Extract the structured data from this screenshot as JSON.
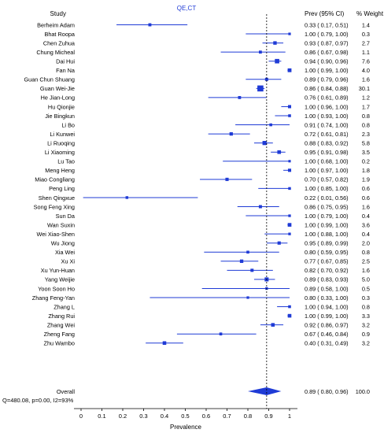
{
  "chart_data": {
    "type": "forest",
    "title": "QE,CT",
    "title_color": "#1f3bd6",
    "marker_color": "#1f3bd6",
    "line_color": "#1f3bd6",
    "headers": {
      "study": "Study",
      "ci": "Prev (95% CI)",
      "weight": "% Weight"
    },
    "xlabel": "Prevalence",
    "xlim": [
      0,
      1
    ],
    "xticks": [
      "0",
      "0.1",
      "0.2",
      "0.3",
      "0.4",
      "0.5",
      "0.6",
      "0.7",
      "0.8",
      "0.9",
      "1"
    ],
    "reference_line": 0.89,
    "studies": [
      {
        "name": "Berheim Adam",
        "est": 0.33,
        "lo": 0.17,
        "hi": 0.51,
        "ci_text": "0.33 ( 0.17, 0.51)",
        "weight": "1.4"
      },
      {
        "name": "Bhat Roopa",
        "est": 1.0,
        "lo": 0.79,
        "hi": 1.0,
        "ci_text": "1.00 ( 0.79, 1.00)",
        "weight": "0.3"
      },
      {
        "name": "Chen Zuhua",
        "est": 0.93,
        "lo": 0.87,
        "hi": 0.97,
        "ci_text": "0.93 ( 0.87, 0.97)",
        "weight": "2.7"
      },
      {
        "name": "Chung Micheal",
        "est": 0.86,
        "lo": 0.67,
        "hi": 0.98,
        "ci_text": "0.86 ( 0.67, 0.98)",
        "weight": "1.1"
      },
      {
        "name": "Dai Hui",
        "est": 0.94,
        "lo": 0.9,
        "hi": 0.96,
        "ci_text": "0.94 ( 0.90, 0.96)",
        "weight": "7.6"
      },
      {
        "name": "Fan Na",
        "est": 1.0,
        "lo": 0.99,
        "hi": 1.0,
        "ci_text": "1.00 ( 0.99, 1.00)",
        "weight": "4.0"
      },
      {
        "name": "Guan Chun Shuang",
        "est": 0.89,
        "lo": 0.79,
        "hi": 0.96,
        "ci_text": "0.89 ( 0.79, 0.96)",
        "weight": "1.6"
      },
      {
        "name": "Guan Wei-Jie",
        "est": 0.86,
        "lo": 0.84,
        "hi": 0.88,
        "ci_text": "0.86 ( 0.84, 0.88)",
        "weight": "30.1"
      },
      {
        "name": "He Jian-Long",
        "est": 0.76,
        "lo": 0.61,
        "hi": 0.89,
        "ci_text": "0.76 ( 0.61, 0.89)",
        "weight": "1.2"
      },
      {
        "name": "Hu Qionjie",
        "est": 1.0,
        "lo": 0.96,
        "hi": 1.0,
        "ci_text": "1.00 ( 0.96, 1.00)",
        "weight": "1.7"
      },
      {
        "name": "Jie Bingkun",
        "est": 1.0,
        "lo": 0.93,
        "hi": 1.0,
        "ci_text": "1.00 ( 0.93, 1.00)",
        "weight": "0.8"
      },
      {
        "name": "Li Bo",
        "est": 0.91,
        "lo": 0.74,
        "hi": 1.0,
        "ci_text": "0.91 ( 0.74, 1.00)",
        "weight": "0.8"
      },
      {
        "name": "Li Kunwei",
        "est": 0.72,
        "lo": 0.61,
        "hi": 0.81,
        "ci_text": "0.72 ( 0.61, 0.81)",
        "weight": "2.3"
      },
      {
        "name": "Li Ruoqing",
        "est": 0.88,
        "lo": 0.83,
        "hi": 0.92,
        "ci_text": "0.88 ( 0.83, 0.92)",
        "weight": "5.8"
      },
      {
        "name": "Li Xiaoming",
        "est": 0.95,
        "lo": 0.91,
        "hi": 0.98,
        "ci_text": "0.95 ( 0.91, 0.98)",
        "weight": "3.5"
      },
      {
        "name": "Lu Tao",
        "est": 1.0,
        "lo": 0.68,
        "hi": 1.0,
        "ci_text": "1.00 ( 0.68, 1.00)",
        "weight": "0.2"
      },
      {
        "name": "Meng Heng",
        "est": 1.0,
        "lo": 0.97,
        "hi": 1.0,
        "ci_text": "1.00 ( 0.97, 1.00)",
        "weight": "1.8"
      },
      {
        "name": "Miao Congliang",
        "est": 0.7,
        "lo": 0.57,
        "hi": 0.82,
        "ci_text": "0.70 ( 0.57, 0.82)",
        "weight": "1.9"
      },
      {
        "name": "Peng Ling",
        "est": 1.0,
        "lo": 0.85,
        "hi": 1.0,
        "ci_text": "1.00 ( 0.85, 1.00)",
        "weight": "0.6"
      },
      {
        "name": "Shen Qingxue",
        "est": 0.22,
        "lo": 0.01,
        "hi": 0.56,
        "ci_text": "0.22 ( 0.01, 0.56)",
        "weight": "0.6"
      },
      {
        "name": "Song Feng Xing",
        "est": 0.86,
        "lo": 0.75,
        "hi": 0.95,
        "ci_text": "0.86 ( 0.75, 0.95)",
        "weight": "1.6"
      },
      {
        "name": "Sun Da",
        "est": 1.0,
        "lo": 0.79,
        "hi": 1.0,
        "ci_text": "1.00 ( 0.79, 1.00)",
        "weight": "0.4"
      },
      {
        "name": "Wan Suxin",
        "est": 1.0,
        "lo": 0.99,
        "hi": 1.0,
        "ci_text": "1.00 ( 0.99, 1.00)",
        "weight": "3.6"
      },
      {
        "name": "Wei Xiao-Shen",
        "est": 1.0,
        "lo": 0.88,
        "hi": 1.0,
        "ci_text": "1.00 ( 0.88, 1.00)",
        "weight": "0.4"
      },
      {
        "name": "Wu Jiong",
        "est": 0.95,
        "lo": 0.89,
        "hi": 0.99,
        "ci_text": "0.95 ( 0.89, 0.99)",
        "weight": "2.0"
      },
      {
        "name": "Xia Wei",
        "est": 0.8,
        "lo": 0.59,
        "hi": 0.95,
        "ci_text": "0.80 ( 0.59, 0.95)",
        "weight": "0.8"
      },
      {
        "name": "Xu Xi",
        "est": 0.77,
        "lo": 0.67,
        "hi": 0.85,
        "ci_text": "0.77 ( 0.67, 0.85)",
        "weight": "2.5"
      },
      {
        "name": "Xu Yun-Huan",
        "est": 0.82,
        "lo": 0.7,
        "hi": 0.92,
        "ci_text": "0.82 ( 0.70, 0.92)",
        "weight": "1.6"
      },
      {
        "name": "Yang Weijie",
        "est": 0.89,
        "lo": 0.83,
        "hi": 0.93,
        "ci_text": "0.89 ( 0.83, 0.93)",
        "weight": "5.0"
      },
      {
        "name": "Yoon Soon Ho",
        "est": 0.89,
        "lo": 0.58,
        "hi": 1.0,
        "ci_text": "0.89 ( 0.58, 1.00)",
        "weight": "0.5"
      },
      {
        "name": "Zhang Feng-Yan",
        "est": 0.8,
        "lo": 0.33,
        "hi": 1.0,
        "ci_text": "0.80 ( 0.33, 1.00)",
        "weight": "0.3"
      },
      {
        "name": "Zhang L",
        "est": 1.0,
        "lo": 0.94,
        "hi": 1.0,
        "ci_text": "1.00 ( 0.94, 1.00)",
        "weight": "0.8"
      },
      {
        "name": "Zhang Rui",
        "est": 1.0,
        "lo": 0.99,
        "hi": 1.0,
        "ci_text": "1.00 ( 0.99, 1.00)",
        "weight": "3.3"
      },
      {
        "name": "Zhang Wei",
        "est": 0.92,
        "lo": 0.86,
        "hi": 0.97,
        "ci_text": "0.92 ( 0.86, 0.97)",
        "weight": "3.2"
      },
      {
        "name": "Zheng Fang",
        "est": 0.67,
        "lo": 0.46,
        "hi": 0.84,
        "ci_text": "0.67 ( 0.46, 0.84)",
        "weight": "0.9"
      },
      {
        "name": "Zhu Wambo",
        "est": 0.4,
        "lo": 0.31,
        "hi": 0.49,
        "ci_text": "0.40 ( 0.31, 0.49)",
        "weight": "3.2"
      }
    ],
    "overall": {
      "name": "Overall",
      "est": 0.89,
      "lo": 0.8,
      "hi": 0.96,
      "ci_text": "0.89 ( 0.80, 0.96)",
      "weight": "100.0"
    },
    "heterogeneity": "Q=480.08, p=0.00, I2=93%"
  }
}
